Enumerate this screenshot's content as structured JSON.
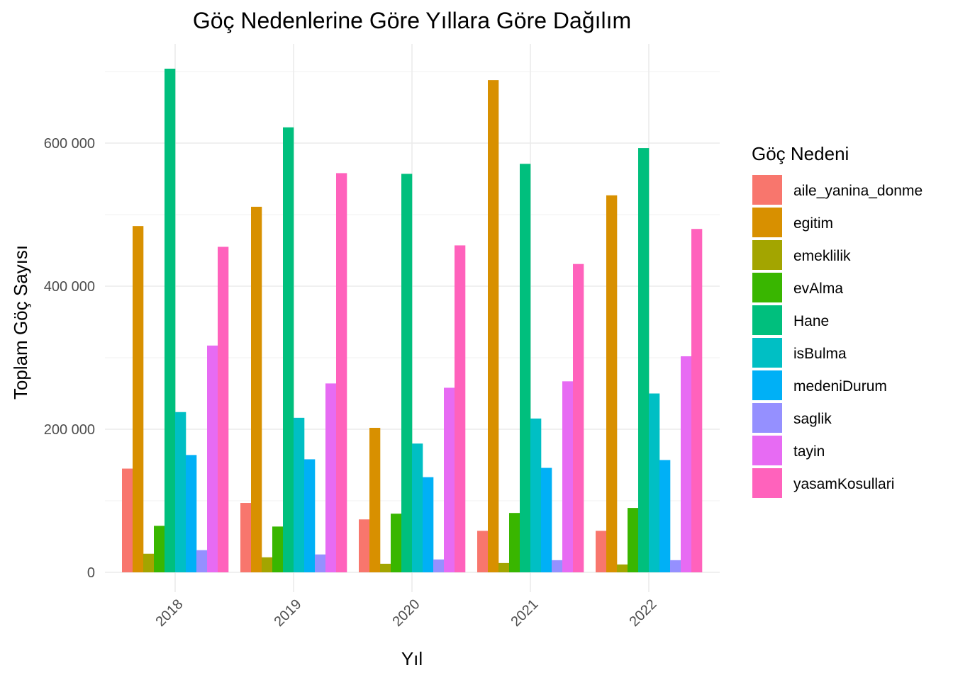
{
  "chart_data": {
    "type": "bar",
    "title": "Göç Nedenlerine Göre Yıllara Göre Dağılım",
    "xlabel": "Yıl",
    "ylabel": "Toplam Göç Sayısı",
    "ylim": [
      0,
      700000
    ],
    "y_ticks": [
      0,
      200000,
      400000,
      600000
    ],
    "y_tick_labels": [
      "0",
      "200 000",
      "400 000",
      "600 000"
    ],
    "grid": true,
    "legend": {
      "title": "Göç Nedeni",
      "position": "right"
    },
    "categories": [
      "2018",
      "2019",
      "2020",
      "2021",
      "2022"
    ],
    "series": [
      {
        "name": "aile_yanina_donme",
        "color": "#F8766D",
        "values": [
          145000,
          97000,
          74000,
          58000,
          58000
        ]
      },
      {
        "name": "egitim",
        "color": "#D89000",
        "values": [
          484000,
          511000,
          202000,
          688000,
          527000
        ]
      },
      {
        "name": "emeklilik",
        "color": "#A3A500",
        "values": [
          26000,
          21000,
          12000,
          13000,
          11000
        ]
      },
      {
        "name": "evAlma",
        "color": "#39B600",
        "values": [
          65000,
          64000,
          82000,
          83000,
          90000
        ]
      },
      {
        "name": "Hane",
        "color": "#00BF7D",
        "values": [
          704000,
          622000,
          557000,
          571000,
          593000
        ]
      },
      {
        "name": "isBulma",
        "color": "#00BFC4",
        "values": [
          224000,
          216000,
          180000,
          215000,
          250000
        ]
      },
      {
        "name": "medeniDurum",
        "color": "#00B0F6",
        "values": [
          164000,
          158000,
          133000,
          146000,
          157000
        ]
      },
      {
        "name": "saglik",
        "color": "#9590FF",
        "values": [
          31000,
          25000,
          18000,
          17000,
          17000
        ]
      },
      {
        "name": "tayin",
        "color": "#E76BF3",
        "values": [
          317000,
          264000,
          258000,
          267000,
          302000
        ]
      },
      {
        "name": "yasamKosullari",
        "color": "#FF62BC",
        "values": [
          455000,
          558000,
          457000,
          431000,
          480000
        ]
      }
    ]
  }
}
